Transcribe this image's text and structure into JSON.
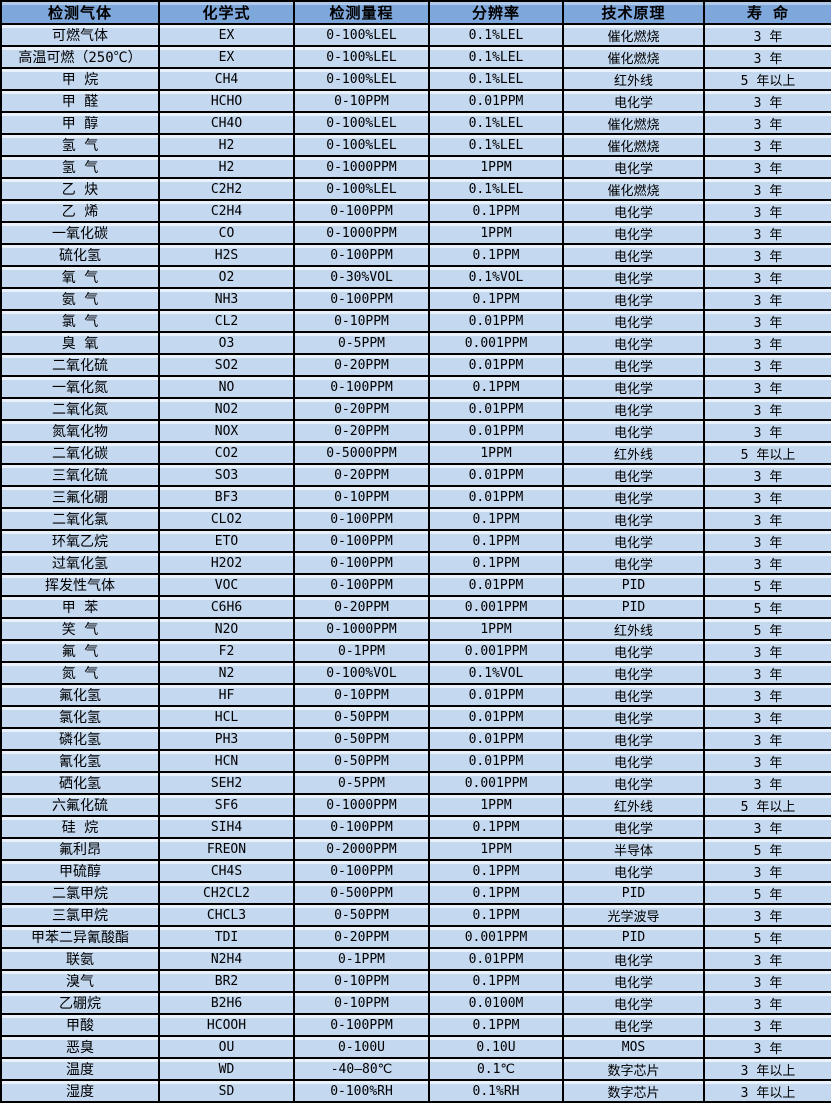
{
  "colors": {
    "header_bg": "#7ea7db",
    "header_bg_top": "#b0c9e8",
    "row_bg": "#c4d8f0",
    "row_bg_top": "#e9f1fb",
    "border": "#000000",
    "text": "#000000"
  },
  "table": {
    "headers": [
      "检测气体",
      "化学式",
      "检测量程",
      "分辨率",
      "技术原理",
      "寿 命"
    ],
    "rows": [
      [
        "可燃气体",
        "EX",
        "0-100%LEL",
        "0.1%LEL",
        "催化燃烧",
        "3 年"
      ],
      [
        "高温可燃（250℃）",
        "EX",
        "0-100%LEL",
        "0.1%LEL",
        "催化燃烧",
        "3 年"
      ],
      [
        "甲 烷",
        "CH4",
        "0-100%LEL",
        "0.1%LEL",
        "红外线",
        "5 年以上"
      ],
      [
        "甲 醛",
        "HCHO",
        "0-10PPM",
        "0.01PPM",
        "电化学",
        "3 年"
      ],
      [
        "甲 醇",
        "CH4O",
        "0-100%LEL",
        "0.1%LEL",
        "催化燃烧",
        "3 年"
      ],
      [
        "氢 气",
        "H2",
        "0-100%LEL",
        "0.1%LEL",
        "催化燃烧",
        "3 年"
      ],
      [
        "氢 气",
        "H2",
        "0-1000PPM",
        "1PPM",
        "电化学",
        "3 年"
      ],
      [
        "乙 炔",
        "C2H2",
        "0-100%LEL",
        "0.1%LEL",
        "催化燃烧",
        "3 年"
      ],
      [
        "乙 烯",
        "C2H4",
        "0-100PPM",
        "0.1PPM",
        "电化学",
        "3 年"
      ],
      [
        "一氧化碳",
        "CO",
        "0-1000PPM",
        "1PPM",
        "电化学",
        "3 年"
      ],
      [
        "硫化氢",
        "H2S",
        "0-100PPM",
        "0.1PPM",
        "电化学",
        "3 年"
      ],
      [
        "氧 气",
        "O2",
        "0-30%VOL",
        "0.1%VOL",
        "电化学",
        "3 年"
      ],
      [
        "氨 气",
        "NH3",
        "0-100PPM",
        "0.1PPM",
        "电化学",
        "3 年"
      ],
      [
        "氯 气",
        "CL2",
        "0-10PPM",
        "0.01PPM",
        "电化学",
        "3 年"
      ],
      [
        "臭 氧",
        "O3",
        "0-5PPM",
        "0.001PPM",
        "电化学",
        "3 年"
      ],
      [
        "二氧化硫",
        "SO2",
        "0-20PPM",
        "0.01PPM",
        "电化学",
        "3 年"
      ],
      [
        "一氧化氮",
        "NO",
        "0-100PPM",
        "0.1PPM",
        "电化学",
        "3 年"
      ],
      [
        "二氧化氮",
        "NO2",
        "0-20PPM",
        "0.01PPM",
        "电化学",
        "3 年"
      ],
      [
        "氮氧化物",
        "NOX",
        "0-20PPM",
        "0.01PPM",
        "电化学",
        "3 年"
      ],
      [
        "二氧化碳",
        "CO2",
        "0-5000PPM",
        "1PPM",
        "红外线",
        "5 年以上"
      ],
      [
        "三氧化硫",
        "SO3",
        "0-20PPM",
        "0.01PPM",
        "电化学",
        "3 年"
      ],
      [
        "三氟化硼",
        "BF3",
        "0-10PPM",
        "0.01PPM",
        "电化学",
        "3 年"
      ],
      [
        "二氧化氯",
        "CLO2",
        "0-100PPM",
        "0.1PPM",
        "电化学",
        "3 年"
      ],
      [
        "环氧乙烷",
        "ETO",
        "0-100PPM",
        "0.1PPM",
        "电化学",
        "3 年"
      ],
      [
        "过氧化氢",
        "H2O2",
        "0-100PPM",
        "0.1PPM",
        "电化学",
        "3 年"
      ],
      [
        "挥发性气体",
        "VOC",
        "0-100PPM",
        "0.01PPM",
        "PID",
        "5 年"
      ],
      [
        "甲 苯",
        "C6H6",
        "0-20PPM",
        "0.001PPM",
        "PID",
        "5 年"
      ],
      [
        "笑 气",
        "N2O",
        "0-1000PPM",
        "1PPM",
        "红外线",
        "5 年"
      ],
      [
        "氟 气",
        "F2",
        "0-1PPM",
        "0.001PPM",
        "电化学",
        "3 年"
      ],
      [
        "氮 气",
        "N2",
        "0-100%VOL",
        "0.1%VOL",
        "电化学",
        "3 年"
      ],
      [
        "氟化氢",
        "HF",
        "0-10PPM",
        "0.01PPM",
        "电化学",
        "3 年"
      ],
      [
        "氯化氢",
        "HCL",
        "0-50PPM",
        "0.01PPM",
        "电化学",
        "3 年"
      ],
      [
        "磷化氢",
        "PH3",
        "0-50PPM",
        "0.01PPM",
        "电化学",
        "3 年"
      ],
      [
        "氰化氢",
        "HCN",
        "0-50PPM",
        "0.01PPM",
        "电化学",
        "3 年"
      ],
      [
        "硒化氢",
        "SEH2",
        "0-5PPM",
        "0.001PPM",
        "电化学",
        "3 年"
      ],
      [
        "六氟化硫",
        "SF6",
        "0-1000PPM",
        "1PPM",
        "红外线",
        "5 年以上"
      ],
      [
        "硅 烷",
        "SIH4",
        "0-100PPM",
        "0.1PPM",
        "电化学",
        "3 年"
      ],
      [
        "氟利昂",
        "FREON",
        "0-2000PPM",
        "1PPM",
        "半导体",
        "5 年"
      ],
      [
        "甲硫醇",
        "CH4S",
        "0-100PPM",
        "0.1PPM",
        "电化学",
        "3 年"
      ],
      [
        "二氯甲烷",
        "CH2CL2",
        "0-500PPM",
        "0.1PPM",
        "PID",
        "5 年"
      ],
      [
        "三氯甲烷",
        "CHCL3",
        "0-50PPM",
        "0.1PPM",
        "光学波导",
        "3 年"
      ],
      [
        "甲苯二异氰酸酯",
        "TDI",
        "0-20PPM",
        "0.001PPM",
        "PID",
        "5 年"
      ],
      [
        "联氨",
        "N2H4",
        "0-1PPM",
        "0.01PPM",
        "电化学",
        "3 年"
      ],
      [
        "溴气",
        "BR2",
        "0-10PPM",
        "0.1PPM",
        "电化学",
        "3 年"
      ],
      [
        "乙硼烷",
        "B2H6",
        "0-10PPM",
        "0.0100M",
        "电化学",
        "3 年"
      ],
      [
        "甲酸",
        "HCOOH",
        "0-100PPM",
        "0.1PPM",
        "电化学",
        "3 年"
      ],
      [
        "恶臭",
        "OU",
        "0-100U",
        "0.10U",
        "MOS",
        "3 年"
      ],
      [
        "温度",
        "WD",
        "-40—80℃",
        "0.1℃",
        "数字芯片",
        "3 年以上"
      ],
      [
        "湿度",
        "SD",
        "0-100%RH",
        "0.1%RH",
        "数字芯片",
        "3 年以上"
      ]
    ]
  }
}
